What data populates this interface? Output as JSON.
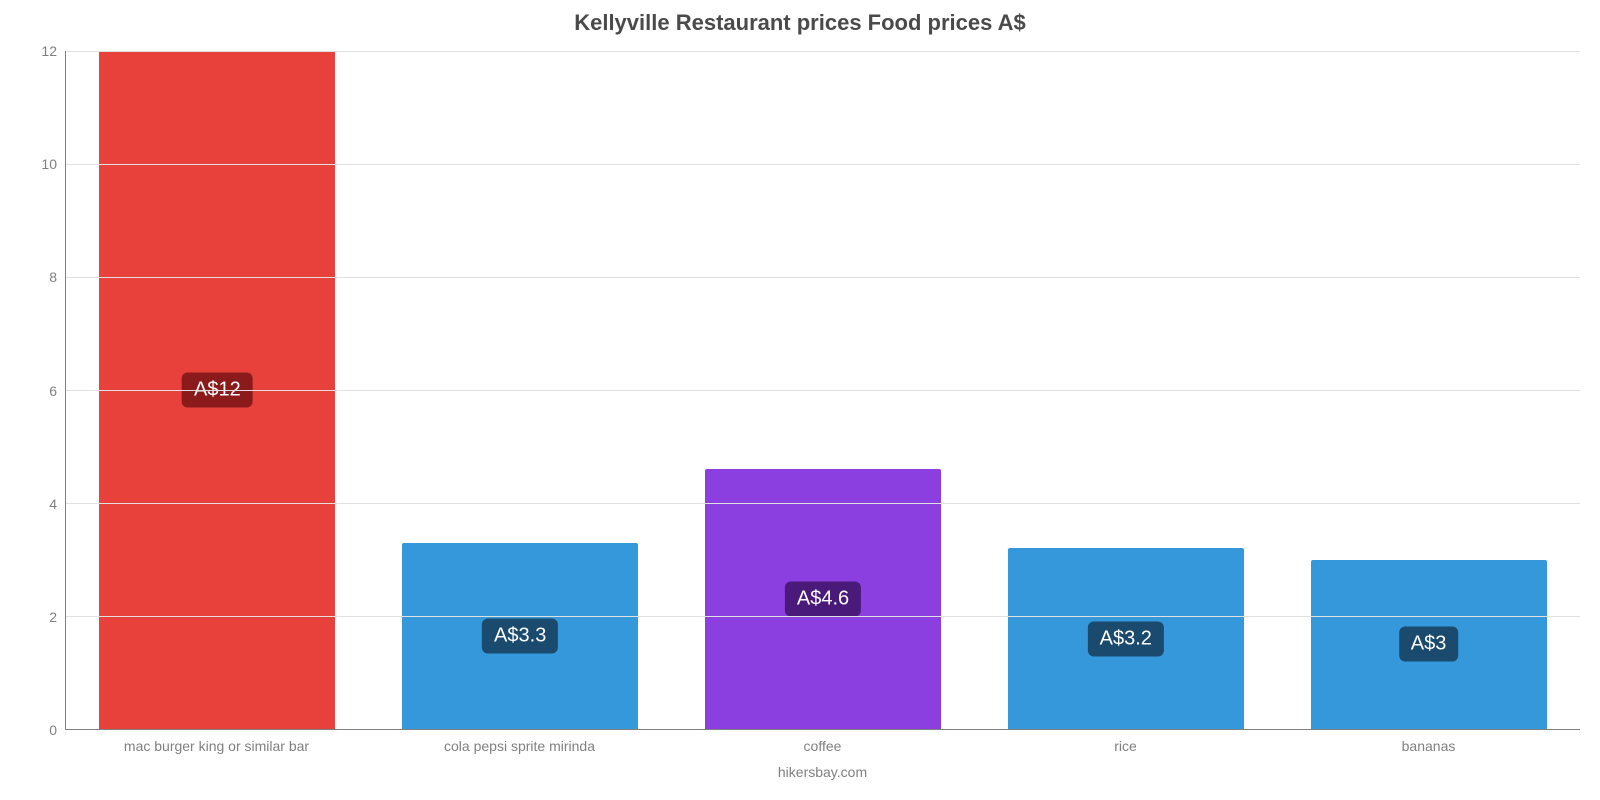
{
  "chart": {
    "type": "bar",
    "title": "Kellyville Restaurant prices Food prices A$",
    "title_fontsize": 22,
    "title_color": "#4a4a4a",
    "background_color": "#ffffff",
    "grid_color": "#e0e0e0",
    "axis_color": "#808080",
    "label_color": "#808080",
    "label_fontsize": 14,
    "bar_label_fontsize": 20,
    "bar_label_color": "#ffffff",
    "ylim": [
      0,
      12
    ],
    "ytick_step": 2,
    "yticks": [
      0,
      2,
      4,
      6,
      8,
      10,
      12
    ],
    "bar_width": 0.78,
    "categories": [
      "mac burger king or similar bar",
      "cola pepsi sprite mirinda",
      "coffee",
      "rice",
      "bananas"
    ],
    "values": [
      12,
      3.3,
      4.6,
      3.2,
      3
    ],
    "value_labels": [
      "A$12",
      "A$3.3",
      "A$4.6",
      "A$3.2",
      "A$3"
    ],
    "bar_colors": [
      "#e8413c",
      "#3498db",
      "#8b3fe0",
      "#3498db",
      "#3498db"
    ],
    "label_bg_colors": [
      "#8b1a1a",
      "#1a4a6e",
      "#4a1a7a",
      "#1a4a6e",
      "#1a4a6e"
    ],
    "attribution": "hikersbay.com"
  }
}
